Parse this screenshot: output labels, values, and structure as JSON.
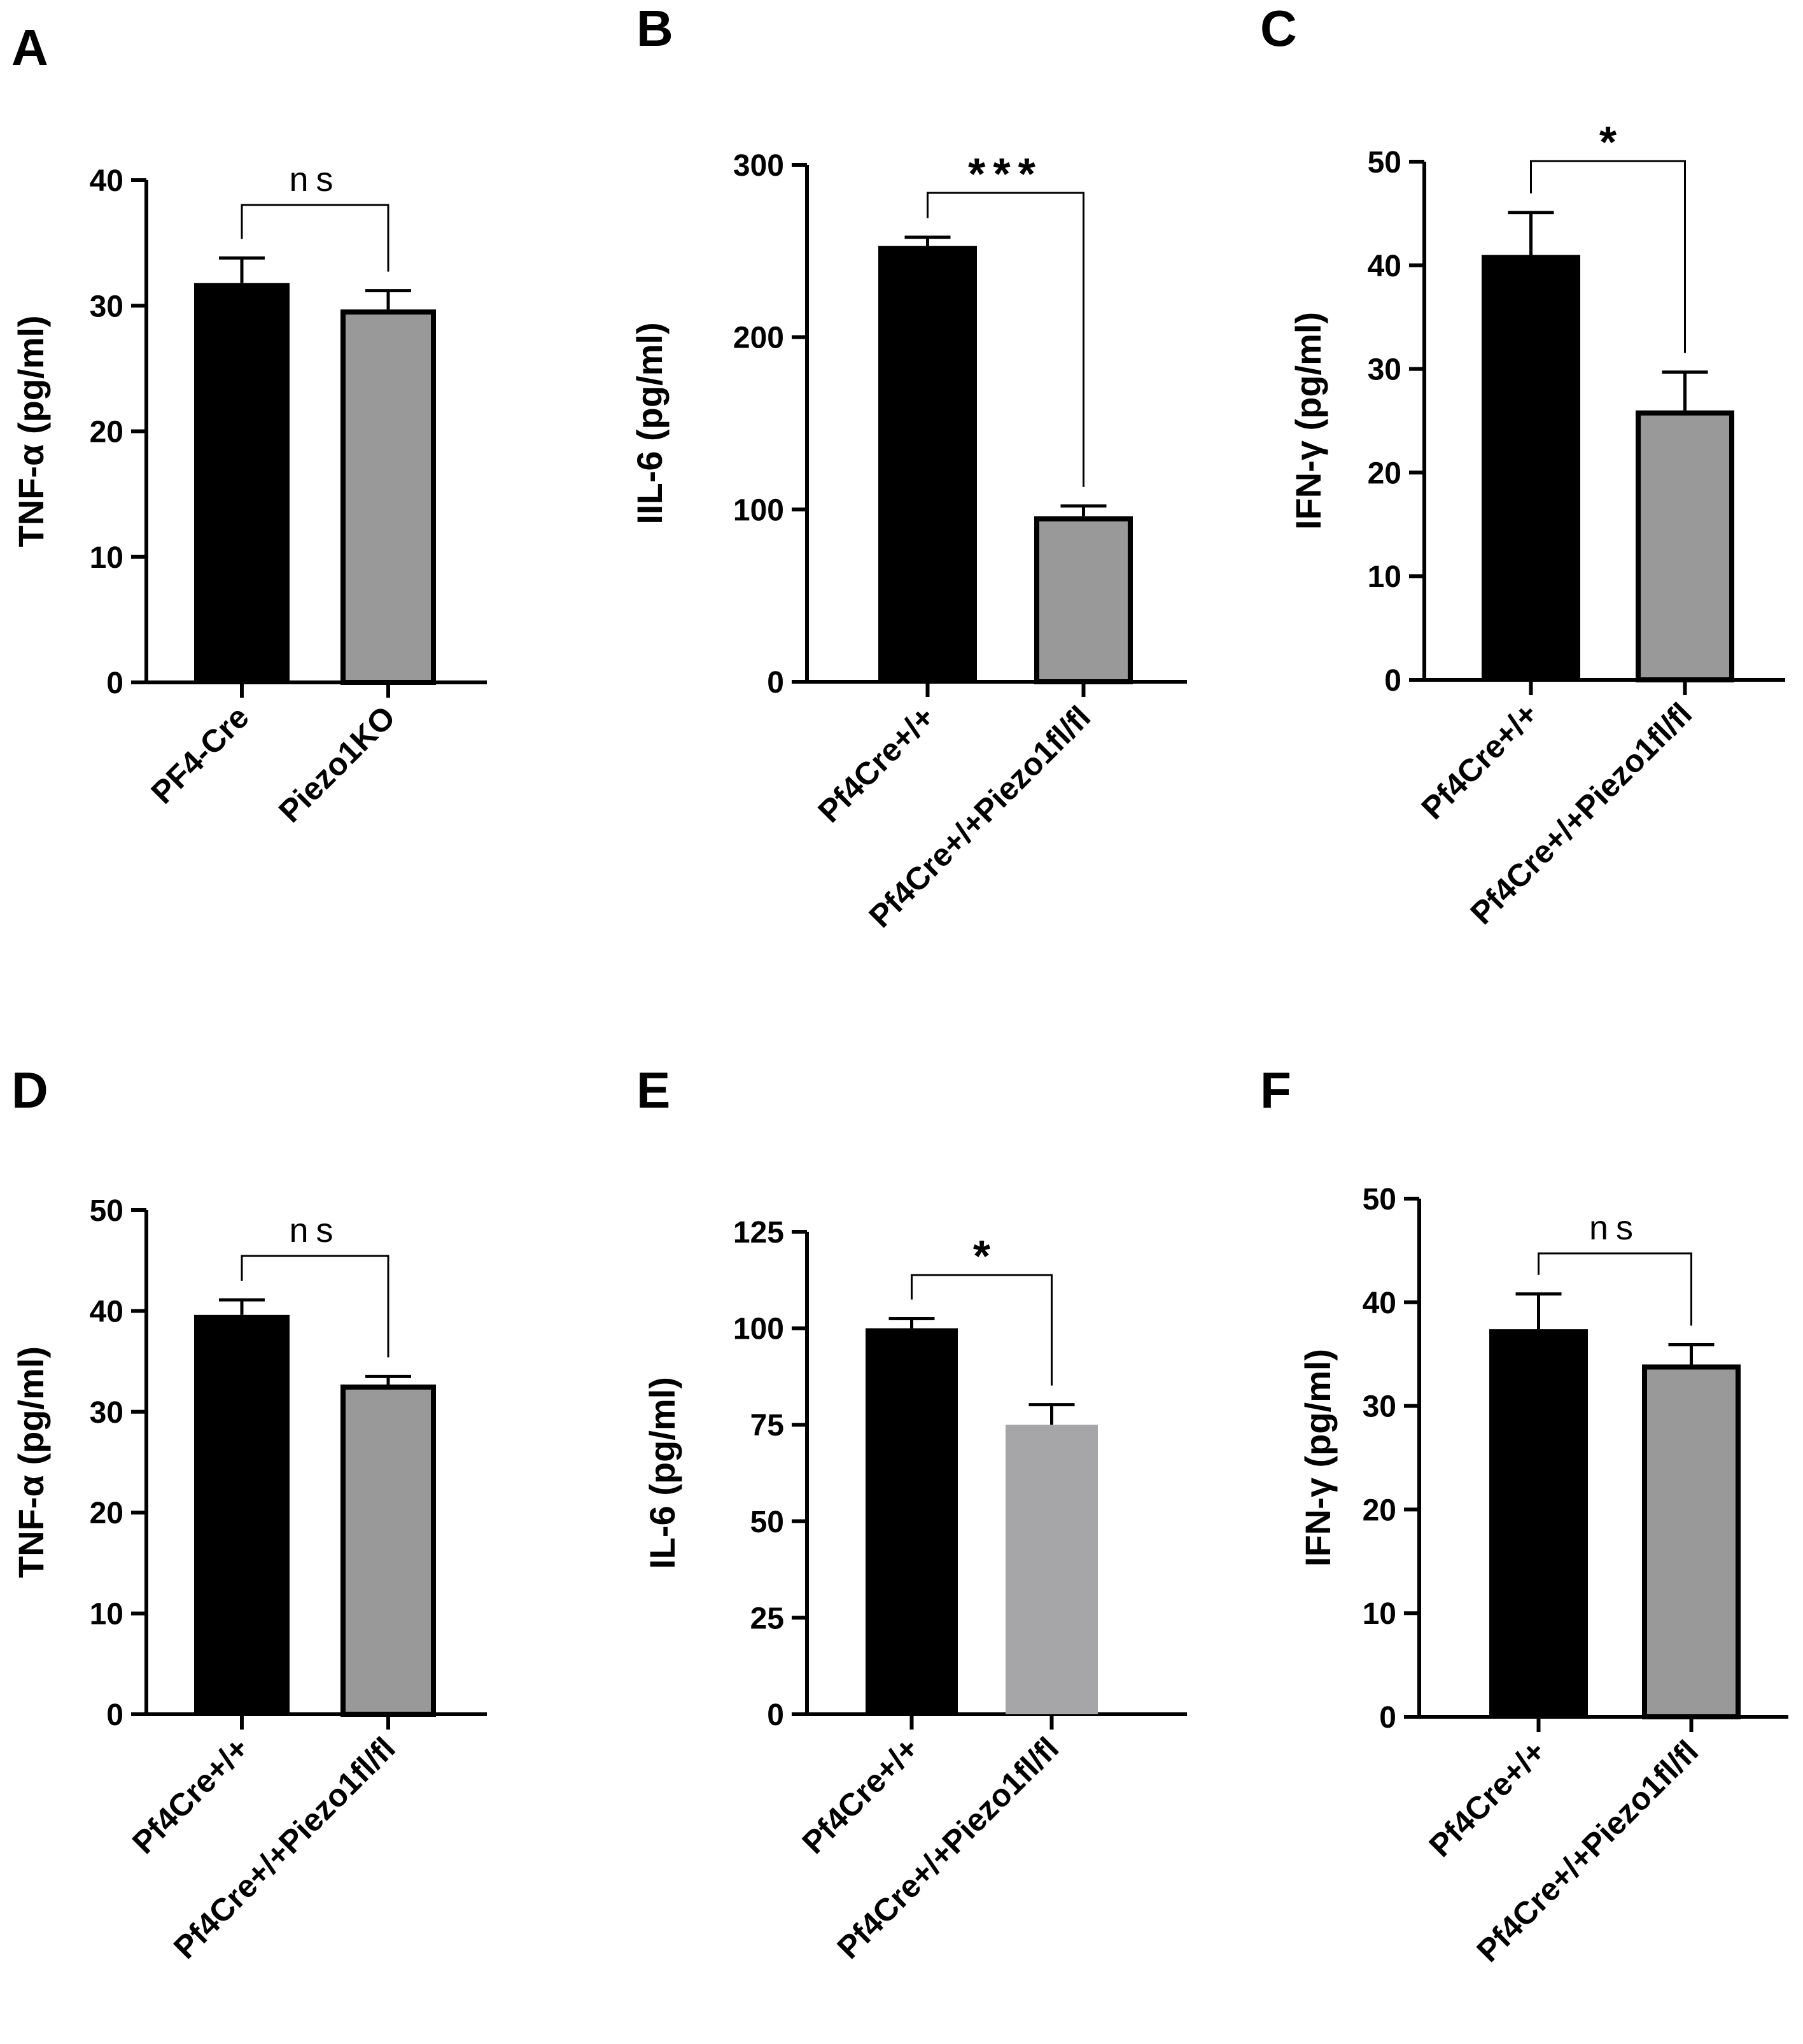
{
  "chart_data": [
    {
      "type": "bar",
      "panel": "A",
      "ylabel": "TNF-α (pg/ml)",
      "ylim": [
        0,
        40
      ],
      "yticks": [
        0,
        10,
        20,
        30,
        40
      ],
      "categories": [
        "PF4-Cre",
        "Piezo1KO"
      ],
      "values": [
        31.8,
        29.7
      ],
      "errors": [
        2.0,
        1.5
      ],
      "colors": [
        "#000000",
        "#999999"
      ],
      "outlined": [
        false,
        true
      ],
      "significance": "ns"
    },
    {
      "type": "bar",
      "panel": "B",
      "ylabel": "IIL-6 (pg/ml)",
      "ylim": [
        0,
        300
      ],
      "yticks": [
        0,
        100,
        200,
        300
      ],
      "categories": [
        "Pf4Cre+/+",
        "Pf4Cre+/+Piezo1fl/fl"
      ],
      "values": [
        253,
        96
      ],
      "errors": [
        5,
        6
      ],
      "colors": [
        "#000000",
        "#999999"
      ],
      "outlined": [
        false,
        true
      ],
      "significance": "***"
    },
    {
      "type": "bar",
      "panel": "C",
      "ylabel": "IFN-γ (pg/ml)",
      "ylim": [
        0,
        50
      ],
      "yticks": [
        0,
        10,
        20,
        30,
        40,
        50
      ],
      "categories": [
        "Pf4Cre+/+",
        "Pf4Cre+/+Piezo1fl/fl"
      ],
      "values": [
        41.0,
        26.0
      ],
      "errors": [
        4.1,
        3.7
      ],
      "colors": [
        "#000000",
        "#999999"
      ],
      "outlined": [
        false,
        true
      ],
      "significance": "*"
    },
    {
      "type": "bar",
      "panel": "D",
      "ylabel": "TNF-α (pg/ml)",
      "ylim": [
        0,
        50
      ],
      "yticks": [
        0,
        10,
        20,
        30,
        40,
        50
      ],
      "categories": [
        "Pf4Cre+/+",
        "Pf4Cre+/+Piezo1fl/fl"
      ],
      "values": [
        39.6,
        32.7
      ],
      "errors": [
        1.5,
        0.8
      ],
      "colors": [
        "#000000",
        "#999999"
      ],
      "outlined": [
        false,
        true
      ],
      "significance": "ns"
    },
    {
      "type": "bar",
      "panel": "E",
      "ylabel": "IL-6 (pg/ml)",
      "ylim": [
        0,
        125
      ],
      "yticks": [
        0,
        25,
        50,
        75,
        100,
        125
      ],
      "categories": [
        "Pf4Cre+/+",
        "Pf4Cre+/+Piezo1fl/fl"
      ],
      "values": [
        100,
        75
      ],
      "errors": [
        2.5,
        5.2
      ],
      "colors": [
        "#000000",
        "#a6a6a8"
      ],
      "outlined": [
        false,
        false
      ],
      "significance": "*"
    },
    {
      "type": "bar",
      "panel": "F",
      "ylabel": "IFN-γ (pg/ml)",
      "ylim": [
        0,
        50
      ],
      "yticks": [
        0,
        10,
        20,
        30,
        40,
        50
      ],
      "categories": [
        "Pf4Cre+/+",
        "Pf4Cre+/+Piezo1fl/fl"
      ],
      "values": [
        37.4,
        34.0
      ],
      "errors": [
        3.4,
        1.9
      ],
      "colors": [
        "#000000",
        "#999999"
      ],
      "outlined": [
        false,
        true
      ],
      "significance": "ns"
    }
  ]
}
